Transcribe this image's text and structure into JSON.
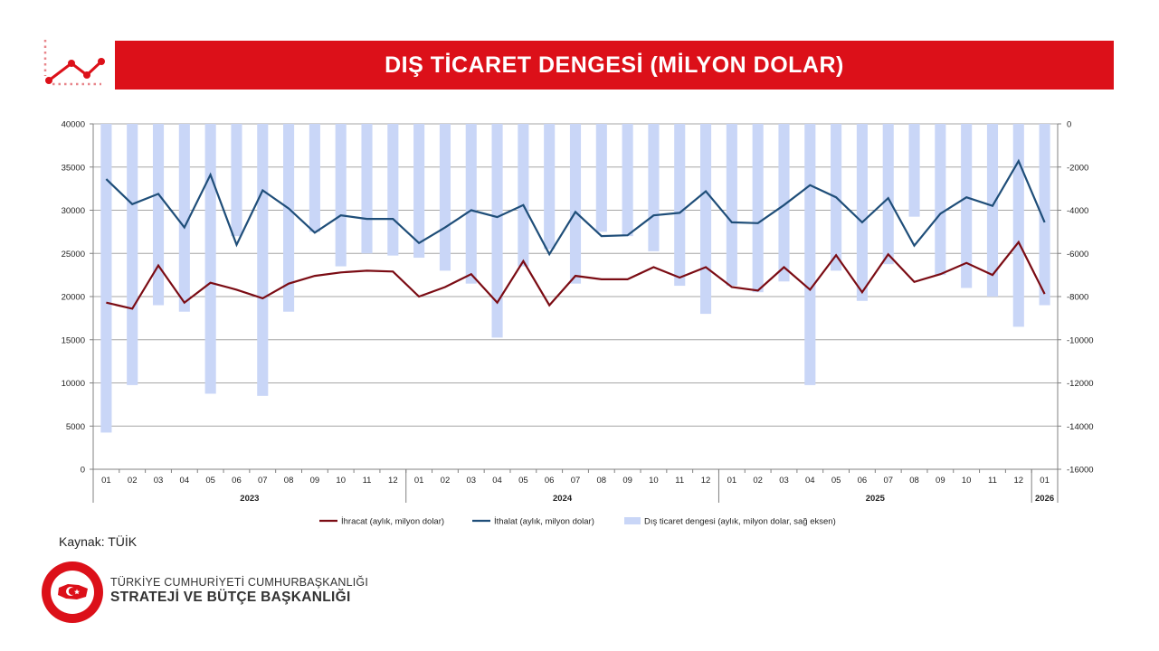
{
  "header": {
    "title": "DIŞ TİCARET DENGESİ (MİLYON DOLAR)",
    "icon": "line-chart-icon"
  },
  "colors": {
    "brand_red": "#dc1019",
    "export_line": "#7b0c14",
    "import_line": "#1f4e79",
    "balance_bars": "#c9d6f7"
  },
  "chart_data": {
    "type": "line",
    "categories": [
      "01",
      "02",
      "03",
      "04",
      "05",
      "06",
      "07",
      "08",
      "09",
      "10",
      "11",
      "12",
      "01",
      "02",
      "03",
      "04",
      "05",
      "06",
      "07",
      "08",
      "09",
      "10",
      "11",
      "12",
      "01",
      "02",
      "03",
      "04",
      "05",
      "06",
      "07",
      "08",
      "09",
      "10",
      "11",
      "12",
      "01"
    ],
    "year_groups": [
      {
        "label": "2023",
        "count": 12
      },
      {
        "label": "2024",
        "count": 12
      },
      {
        "label": "2025",
        "count": 12
      },
      {
        "label": "2026",
        "count": 1
      }
    ],
    "left_axis": {
      "min": 0,
      "max": 40000,
      "step": 5000,
      "ticks": [
        "0",
        "5000",
        "10000",
        "15000",
        "20000",
        "25000",
        "30000",
        "35000",
        "40000"
      ]
    },
    "right_axis": {
      "min": -16000,
      "max": 0,
      "step": 2000,
      "ticks": [
        "-16000",
        "-14000",
        "-12000",
        "-10000",
        "-8000",
        "-6000",
        "-4000",
        "-2000",
        "0"
      ]
    },
    "grid": true,
    "legend_position": "bottom",
    "series": [
      {
        "name": "İhracat (aylık, milyon dolar)",
        "type": "line",
        "axis": "left",
        "color": "#7b0c14",
        "values": [
          19300,
          18600,
          23600,
          19300,
          21600,
          20800,
          19800,
          21500,
          22400,
          22800,
          23000,
          22900,
          20000,
          21100,
          22600,
          19300,
          24100,
          19000,
          22400,
          22000,
          22000,
          23400,
          22200,
          23400,
          21100,
          20700,
          23400,
          20800,
          24800,
          20500,
          24900,
          21700,
          22600,
          23900,
          22500,
          26300,
          20300
        ]
      },
      {
        "name": "İthalat (aylık, milyon dolar)",
        "type": "line",
        "axis": "left",
        "color": "#1f4e79",
        "values": [
          33600,
          30700,
          31900,
          28000,
          34100,
          26000,
          32300,
          30200,
          27400,
          29400,
          29000,
          29000,
          26200,
          28000,
          30000,
          29200,
          30600,
          24900,
          29800,
          27000,
          27100,
          29400,
          29700,
          32200,
          28600,
          28500,
          30600,
          32900,
          31500,
          28600,
          31400,
          25900,
          29600,
          31500,
          30500,
          35700,
          28600
        ]
      },
      {
        "name": "Dış ticaret dengesi (aylık, milyon dolar, sağ eksen)",
        "type": "bar",
        "axis": "right",
        "color": "#c9d6f7",
        "values": [
          -14300,
          -12100,
          -8400,
          -8700,
          -12500,
          -5200,
          -12600,
          -8700,
          -5000,
          -6600,
          -6000,
          -6100,
          -6200,
          -6800,
          -7400,
          -9900,
          -6600,
          -5800,
          -7400,
          -5000,
          -5200,
          -5900,
          -7500,
          -8800,
          -7500,
          -7800,
          -7300,
          -12100,
          -6800,
          -8200,
          -6500,
          -4300,
          -7000,
          -7600,
          -8000,
          -9400,
          -8400
        ]
      }
    ]
  },
  "source": "Kaynak: TÜİK",
  "footer": {
    "org_line1": "TÜRKİYE CUMHURİYETİ CUMHURBAŞKANLIĞI",
    "org_line2": "STRATEJİ VE BÜTÇE BAŞKANLIĞI",
    "emblem_icon": "emblem-icon"
  }
}
